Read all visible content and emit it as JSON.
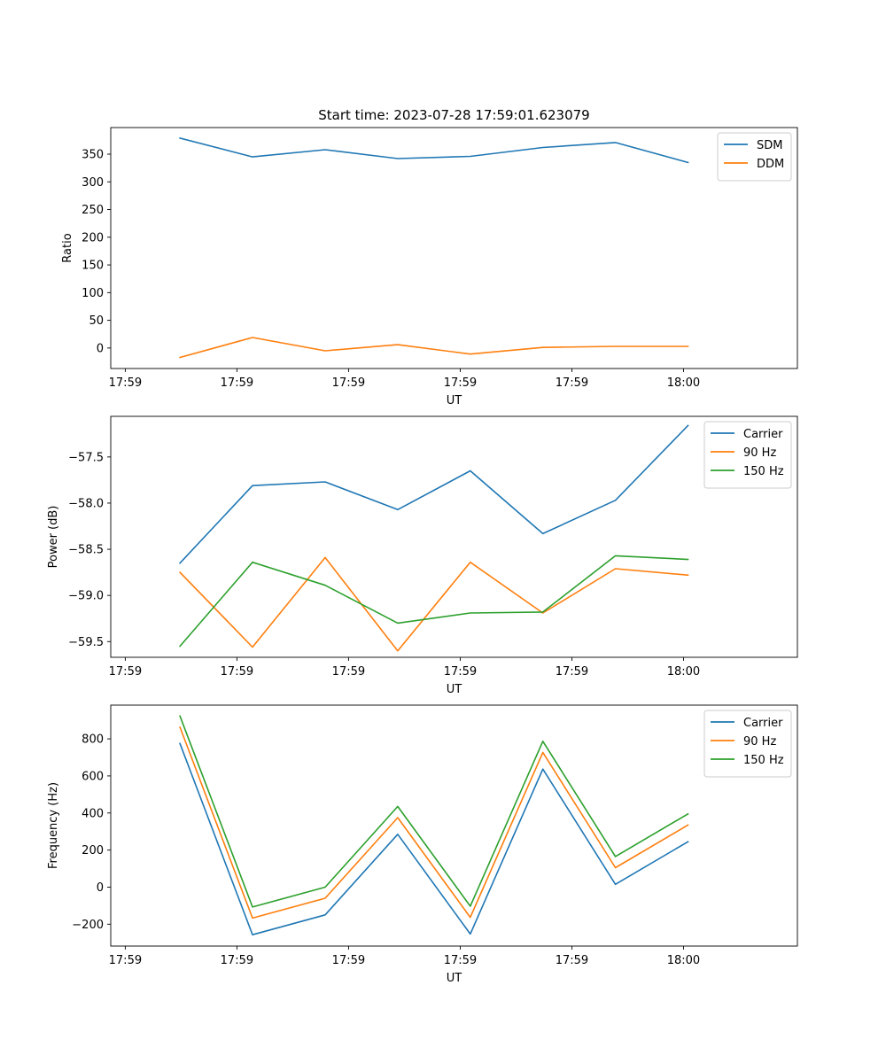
{
  "chart_data": [
    {
      "type": "line",
      "title": "Start time: 2023-07-28 17:59:01.623079",
      "xlabel": "UT",
      "ylabel": "Ratio",
      "xlim": [
        -0.5,
        5.65
      ],
      "x_ticks": [
        {
          "x": -0.37,
          "label": "17:59"
        },
        {
          "x": 0.63,
          "label": "17:59"
        },
        {
          "x": 1.63,
          "label": "17:59"
        },
        {
          "x": 2.63,
          "label": "17:59"
        },
        {
          "x": 3.63,
          "label": "17:59"
        },
        {
          "x": 4.63,
          "label": "18:00"
        }
      ],
      "ylim": [
        -37,
        398
      ],
      "y_ticks": [
        0,
        50,
        100,
        150,
        200,
        250,
        300,
        350
      ],
      "y_tick_labels": [
        "0",
        "50",
        "100",
        "150",
        "200",
        "250",
        "300",
        "350"
      ],
      "x": [
        0.12,
        0.77,
        1.42,
        2.07,
        2.72,
        3.37,
        4.02,
        4.67
      ],
      "series": [
        {
          "name": "SDM",
          "color": "#1f77b4",
          "values": [
            379,
            345,
            358,
            342,
            346,
            362,
            371,
            335
          ]
        },
        {
          "name": "DDM",
          "color": "#ff7f0e",
          "values": [
            -17,
            19,
            -5,
            6,
            -11,
            1,
            3,
            3
          ]
        }
      ],
      "legend": "top-right"
    },
    {
      "type": "line",
      "title": "",
      "xlabel": "UT",
      "ylabel": "Power (dB)",
      "xlim": [
        -0.5,
        5.65
      ],
      "x_ticks": [
        {
          "x": -0.37,
          "label": "17:59"
        },
        {
          "x": 0.63,
          "label": "17:59"
        },
        {
          "x": 1.63,
          "label": "17:59"
        },
        {
          "x": 2.63,
          "label": "17:59"
        },
        {
          "x": 3.63,
          "label": "17:59"
        },
        {
          "x": 4.63,
          "label": "18:00"
        }
      ],
      "ylim": [
        -59.67,
        -57.06
      ],
      "y_ticks": [
        -59.5,
        -59.0,
        -58.5,
        -58.0,
        -57.5
      ],
      "y_tick_labels": [
        "−59.5",
        "−59.0",
        "−58.5",
        "−58.0",
        "−57.5"
      ],
      "x": [
        0.12,
        0.77,
        1.42,
        2.07,
        2.72,
        3.37,
        4.02,
        4.67
      ],
      "series": [
        {
          "name": "Carrier",
          "color": "#1f77b4",
          "values": [
            -58.65,
            -57.81,
            -57.77,
            -58.07,
            -57.65,
            -58.33,
            -57.97,
            -57.16
          ]
        },
        {
          "name": "90 Hz",
          "color": "#ff7f0e",
          "values": [
            -58.75,
            -59.56,
            -58.59,
            -59.6,
            -58.64,
            -59.19,
            -58.71,
            -58.78
          ]
        },
        {
          "name": "150 Hz",
          "color": "#2ca02c",
          "values": [
            -59.55,
            -58.64,
            -58.89,
            -59.3,
            -59.19,
            -59.18,
            -58.57,
            -58.61
          ]
        }
      ],
      "legend": "top-right"
    },
    {
      "type": "line",
      "title": "",
      "xlabel": "UT",
      "ylabel": "Frequency (Hz)",
      "xlim": [
        -0.5,
        5.65
      ],
      "x_ticks": [
        {
          "x": -0.37,
          "label": "17:59"
        },
        {
          "x": 0.63,
          "label": "17:59"
        },
        {
          "x": 1.63,
          "label": "17:59"
        },
        {
          "x": 2.63,
          "label": "17:59"
        },
        {
          "x": 3.63,
          "label": "17:59"
        },
        {
          "x": 4.63,
          "label": "18:00"
        }
      ],
      "ylim": [
        -318,
        982
      ],
      "y_ticks": [
        -200,
        0,
        200,
        400,
        600,
        800
      ],
      "y_tick_labels": [
        "−200",
        "0",
        "200",
        "400",
        "600",
        "800"
      ],
      "x": [
        0.12,
        0.77,
        1.42,
        2.07,
        2.72,
        3.37,
        4.02,
        4.67
      ],
      "series": [
        {
          "name": "Carrier",
          "color": "#1f77b4",
          "values": [
            775,
            -257,
            -150,
            285,
            -253,
            637,
            15,
            245
          ]
        },
        {
          "name": "90 Hz",
          "color": "#ff7f0e",
          "values": [
            863,
            -167,
            -60,
            375,
            -163,
            727,
            105,
            335
          ]
        },
        {
          "name": "150 Hz",
          "color": "#2ca02c",
          "values": [
            923,
            -107,
            0,
            435,
            -103,
            787,
            165,
            395
          ]
        }
      ],
      "legend": "top-right"
    }
  ]
}
